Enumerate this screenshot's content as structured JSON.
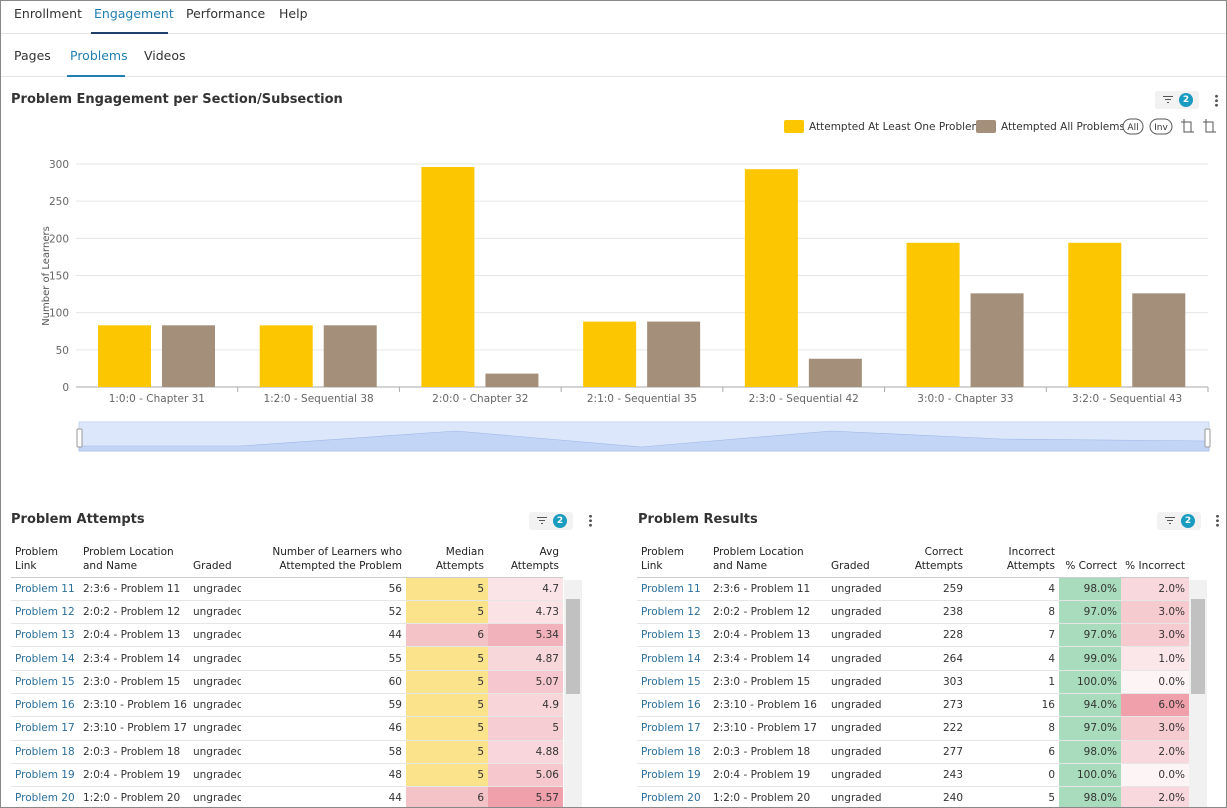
{
  "tabs": [
    "Enrollment",
    "Engagement",
    "Performance",
    "Help"
  ],
  "subtabs": [
    "Pages",
    "Problems",
    "Videos"
  ],
  "chart": {
    "type": "bar",
    "title": "Problem Engagement per Section/Subsection",
    "filter_count": 2,
    "y_label": "Number of Learners",
    "categories": [
      "1:0:0 - Chapter 31",
      "1:2:0 - Sequential 38",
      "2:0:0 - Chapter 32",
      "2:1:0 - Sequential 35",
      "2:3:0 - Sequential 42",
      "3:0:0 - Chapter 33",
      "3:2:0 - Sequential 43"
    ],
    "series": [
      {
        "name": "Attempted At Least One Problem",
        "color": "#fcc700",
        "values": [
          83,
          83,
          296,
          88,
          293,
          194,
          194
        ]
      },
      {
        "name": "Attempted All Problems",
        "color": "#a38f7a",
        "values": [
          83,
          83,
          18,
          88,
          38,
          126,
          126
        ]
      }
    ],
    "ylim": [
      0,
      300
    ],
    "yticks": [
      0,
      50,
      100,
      150,
      200,
      250,
      300
    ],
    "grid": true,
    "legend_buttons": [
      "All",
      "Inv"
    ]
  },
  "tables": [
    {
      "title": "Problem Attempts",
      "filter_count": 2,
      "columns": [
        "Problem Link",
        "Problem Location and Name",
        "Graded",
        "Number of Learners who Attempted the Problem",
        "Median Attempts",
        "Avg Attempts"
      ],
      "rows": [
        [
          "Problem 11",
          "2:3:6 - Problem 11",
          "ungraded",
          56,
          5,
          4.7
        ],
        [
          "Problem 12",
          "2:0:2 - Problem 12",
          "ungraded",
          52,
          5,
          4.73
        ],
        [
          "Problem 13",
          "2:0:4 - Problem 13",
          "ungraded",
          44,
          6,
          5.34
        ],
        [
          "Problem 14",
          "2:3:4 - Problem 14",
          "ungraded",
          55,
          5,
          4.87
        ],
        [
          "Problem 15",
          "2:3:0 - Problem 15",
          "ungraded",
          60,
          5,
          5.07
        ],
        [
          "Problem 16",
          "2:3:10 - Problem 16",
          "ungraded",
          59,
          5,
          4.9
        ],
        [
          "Problem 17",
          "2:3:10 - Problem 17",
          "ungraded",
          46,
          5,
          5
        ],
        [
          "Problem 18",
          "2:0:3 - Problem 18",
          "ungraded",
          58,
          5,
          4.88
        ],
        [
          "Problem 19",
          "2:0:4 - Problem 19",
          "ungraded",
          48,
          5,
          5.06
        ],
        [
          "Problem 20",
          "1:2:0 - Problem 20",
          "ungraded",
          44,
          6,
          5.57
        ]
      ]
    },
    {
      "title": "Problem Results",
      "filter_count": 2,
      "columns": [
        "Problem Link",
        "Problem Location and Name",
        "Graded",
        "Correct Attempts",
        "Incorrect Attempts",
        "% Correct",
        "% Incorrect"
      ],
      "rows": [
        [
          "Problem 11",
          "2:3:6 - Problem 11",
          "ungraded",
          259,
          4,
          "98.0%",
          "2.0%"
        ],
        [
          "Problem 12",
          "2:0:2 - Problem 12",
          "ungraded",
          238,
          8,
          "97.0%",
          "3.0%"
        ],
        [
          "Problem 13",
          "2:0:4 - Problem 13",
          "ungraded",
          228,
          7,
          "97.0%",
          "3.0%"
        ],
        [
          "Problem 14",
          "2:3:4 - Problem 14",
          "ungraded",
          264,
          4,
          "99.0%",
          "1.0%"
        ],
        [
          "Problem 15",
          "2:3:0 - Problem 15",
          "ungraded",
          303,
          1,
          "100.0%",
          "0.0%"
        ],
        [
          "Problem 16",
          "2:3:10 - Problem 16",
          "ungraded",
          273,
          16,
          "94.0%",
          "6.0%"
        ],
        [
          "Problem 17",
          "2:3:10 - Problem 17",
          "ungraded",
          222,
          8,
          "97.0%",
          "3.0%"
        ],
        [
          "Problem 18",
          "2:0:3 - Problem 18",
          "ungraded",
          277,
          6,
          "98.0%",
          "2.0%"
        ],
        [
          "Problem 19",
          "2:0:4 - Problem 19",
          "ungraded",
          243,
          0,
          "100.0%",
          "0.0%"
        ],
        [
          "Problem 20",
          "1:2:0 - Problem 20",
          "ungraded",
          240,
          5,
          "98.0%",
          "2.0%"
        ]
      ]
    }
  ]
}
